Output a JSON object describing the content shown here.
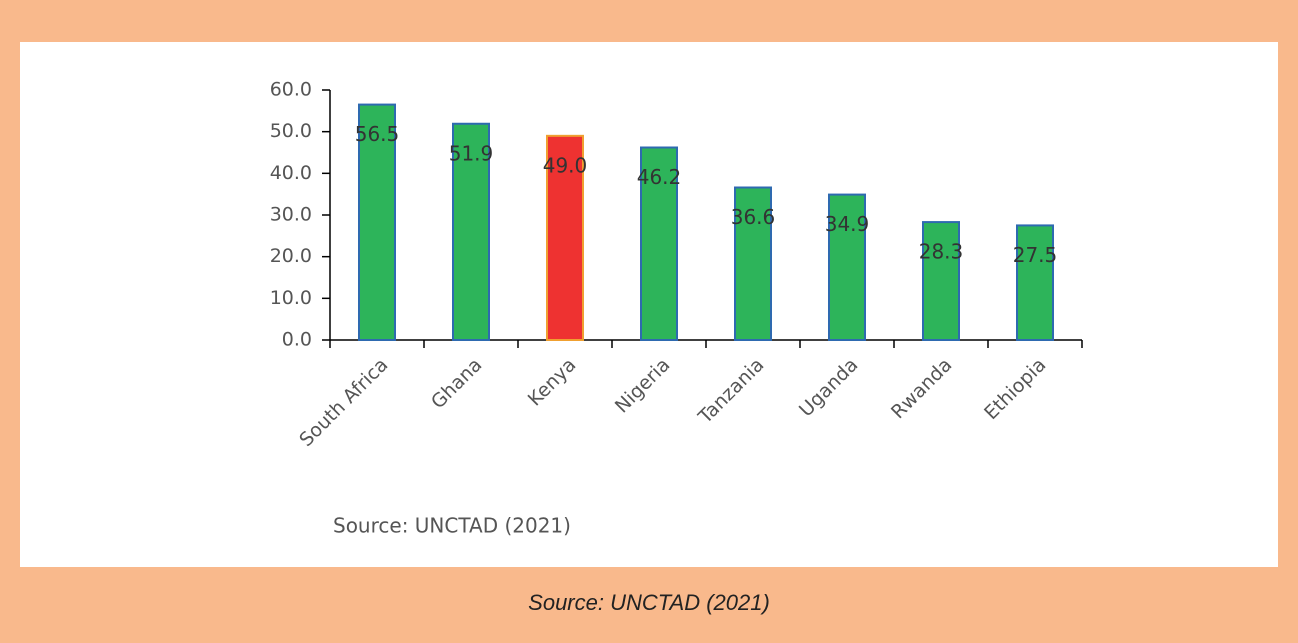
{
  "chart_data": {
    "type": "bar",
    "categories": [
      "South Africa",
      "Ghana",
      "Kenya",
      "Nigeria",
      "Tanzania",
      "Uganda",
      "Rwanda",
      "Ethiopia"
    ],
    "values": [
      56.5,
      51.9,
      49.0,
      46.2,
      36.6,
      34.9,
      28.3,
      27.5
    ],
    "value_labels": [
      "56.5",
      "51.9",
      "49.0",
      "46.2",
      "36.6",
      "34.9",
      "28.3",
      "27.5"
    ],
    "colors": [
      "#2db45a",
      "#2db45a",
      "#ee3231",
      "#2db45a",
      "#2db45a",
      "#2db45a",
      "#2db45a",
      "#2db45a"
    ],
    "edge_colors": [
      "#2e6ab0",
      "#2e6ab0",
      "#f0a030",
      "#2e6ab0",
      "#2e6ab0",
      "#2e6ab0",
      "#2e6ab0",
      "#2e6ab0"
    ],
    "ylim": [
      0,
      60
    ],
    "yticks": [
      {
        "value": 0,
        "label": "0.0"
      },
      {
        "value": 10,
        "label": "10.0"
      },
      {
        "value": 20,
        "label": "20.0"
      },
      {
        "value": 30,
        "label": "30.0"
      },
      {
        "value": 40,
        "label": "40.0"
      },
      {
        "value": 50,
        "label": "50.0"
      },
      {
        "value": 60,
        "label": "60.0"
      }
    ],
    "grid": false,
    "source": "Source: UNCTAD (2021)"
  },
  "caption": "Source: UNCTAD (2021)"
}
